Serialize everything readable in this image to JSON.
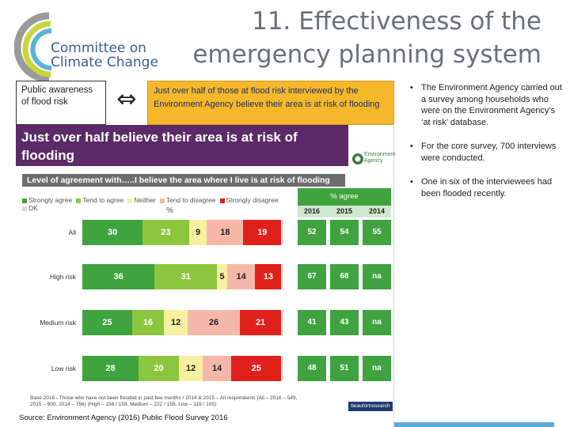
{
  "header": {
    "title_line1": "11. Effectiveness of the",
    "title_line2": "emergency planning system",
    "logo_line1": "Committee on",
    "logo_line2": "Climate Change"
  },
  "topbar": {
    "public_label": "Public awareness of flood risk",
    "arrow_glyph": "⇔",
    "highlight": "Just over half of those at flood risk interviewed by the Environment Agency believe their area is at risk of flooding"
  },
  "bullets": [
    "The Environment Agency carried out a survey among households who were on the Environment Agency’s ‘at risk’ database.",
    "For the core survey, 700 interviews were conducted.",
    "One in six of the interviewees had been flooded recently."
  ],
  "panel": {
    "heading": "Just over half believe their area is at risk of flooding",
    "ea_logo": "Environment Agency",
    "level_bar": "Level of agreement with…..I believe the area where I live is at risk of flooding",
    "pct_symbol": "%",
    "agree_header": "% agree",
    "years": [
      "2016",
      "2015",
      "2014"
    ],
    "footnote": "Base 2016 - Those who have not been flooded in past few months / 2014 & 2015 – All respondents (All – 2016 – 549, 2015 – 600, 2014 – 756) (High – 158 / 159, Medium – 222 / 158, Low – 119 / 105)",
    "beaufort": "beaufortresearch",
    "source": "Source: Environment Agency (2016) Public Flood Survey 2016"
  },
  "legend": [
    {
      "label": "Strongly agree",
      "color": "#3fa33f"
    },
    {
      "label": "Tend to agree",
      "color": "#8cc63f"
    },
    {
      "label": "Neither",
      "color": "#f7f0a0"
    },
    {
      "label": "Tend to disagree",
      "color": "#f5b8a8"
    },
    {
      "label": "Strongly disagree",
      "color": "#e0201b"
    },
    {
      "label": "DK",
      "color": "#d9d9d9"
    }
  ],
  "chart_data": {
    "type": "bar",
    "categories": [
      "All",
      "High risk",
      "Medium risk",
      "Low risk"
    ],
    "series": [
      {
        "name": "Strongly agree",
        "values": [
          30,
          36,
          25,
          28
        ]
      },
      {
        "name": "Tend to agree",
        "values": [
          23,
          31,
          16,
          20
        ]
      },
      {
        "name": "Neither",
        "values": [
          9,
          5,
          12,
          12
        ]
      },
      {
        "name": "Tend to disagree",
        "values": [
          18,
          14,
          26,
          14
        ]
      },
      {
        "name": "Strongly disagree",
        "values": [
          19,
          13,
          21,
          25
        ]
      },
      {
        "name": "DK",
        "values": [
          1,
          1,
          1,
          1
        ]
      }
    ],
    "agree_pct": {
      "years": [
        "2016",
        "2015",
        "2014"
      ],
      "rows": [
        [
          "52",
          "54",
          "55"
        ],
        [
          "67",
          "68",
          "na"
        ],
        [
          "41",
          "43",
          "na"
        ],
        [
          "48",
          "51",
          "na"
        ]
      ]
    }
  }
}
